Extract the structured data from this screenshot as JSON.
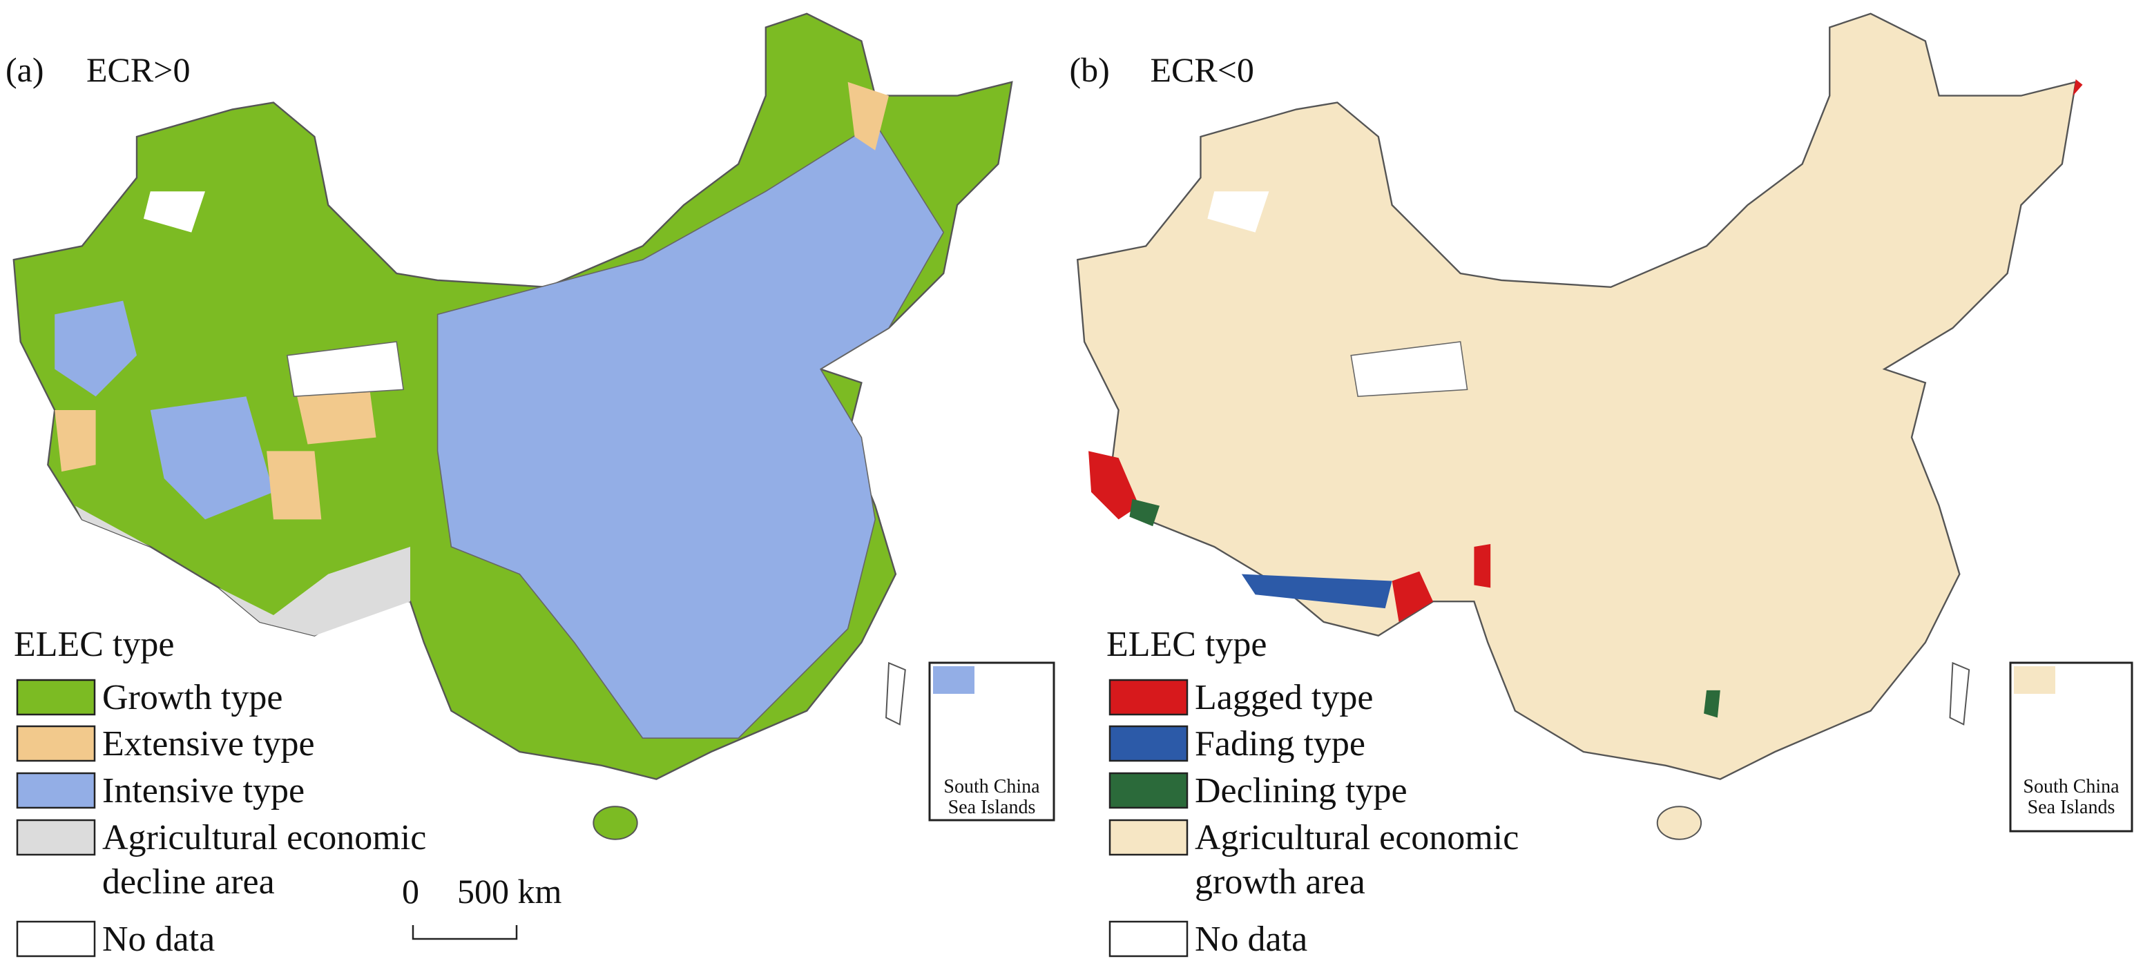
{
  "panels": [
    {
      "label": "(a)",
      "title": "ECR>0",
      "legend": {
        "title": "ELEC type",
        "items": [
          {
            "lines": [
              "Growth type"
            ],
            "color": "#7cbb23"
          },
          {
            "lines": [
              "Extensive type"
            ],
            "color": "#f2c98c"
          },
          {
            "lines": [
              "Intensive type"
            ],
            "color": "#93aee6"
          },
          {
            "lines": [
              "Agricultural economic",
              "decline area"
            ],
            "color": "#dcdcdc"
          },
          {
            "lines": [
              "No data"
            ],
            "color": "#ffffff"
          }
        ]
      },
      "scale_bar": {
        "start": "0",
        "end": "500 km"
      },
      "inset": {
        "lines": [
          "South China",
          "Sea Islands"
        ]
      }
    },
    {
      "label": "(b)",
      "title": "ECR<0",
      "legend": {
        "title": "ELEC type",
        "items": [
          {
            "lines": [
              "Lagged type"
            ],
            "color": "#d7191c"
          },
          {
            "lines": [
              "Fading type"
            ],
            "color": "#2c5aa8"
          },
          {
            "lines": [
              "Declining type"
            ],
            "color": "#2b6a3a"
          },
          {
            "lines": [
              "Agricultural economic",
              "growth area"
            ],
            "color": "#f6e6c4"
          },
          {
            "lines": [
              "No data"
            ],
            "color": "#ffffff"
          }
        ]
      },
      "inset": {
        "lines": [
          "South China",
          "Sea Islands"
        ]
      }
    }
  ]
}
